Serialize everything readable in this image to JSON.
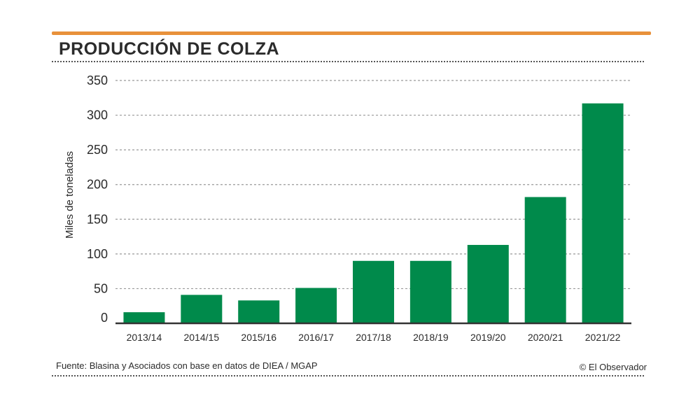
{
  "header": {
    "title": "PRODUCCIÓN DE COLZA"
  },
  "footer": {
    "source": "Fuente: Blasina y Asociados con base en datos de DIEA / MGAP",
    "credit": "© El Observador"
  },
  "colors": {
    "accent": "#e8913a",
    "bar": "#008a4b",
    "text": "#2b2b2b",
    "grid": "#999999"
  },
  "chart_data": {
    "type": "bar",
    "title": "PRODUCCIÓN DE COLZA",
    "xlabel": "",
    "ylabel": "Miles de toneladas",
    "categories": [
      "2013/14",
      "2014/15",
      "2015/16",
      "2016/17",
      "2017/18",
      "2018/19",
      "2019/20",
      "2020/21",
      "2021/22"
    ],
    "values": [
      16,
      41,
      33,
      51,
      90,
      90,
      113,
      182,
      317
    ],
    "yticks": [
      0,
      50,
      100,
      150,
      200,
      250,
      300,
      350
    ],
    "ylim": [
      0,
      350
    ],
    "grid": true,
    "legend": "none"
  }
}
